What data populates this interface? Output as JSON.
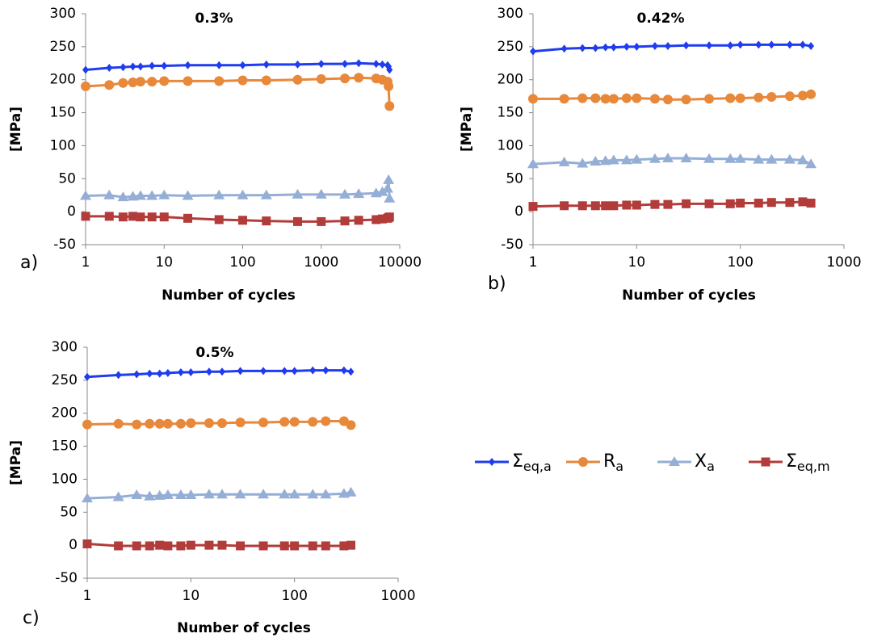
{
  "chart_data": [
    {
      "type": "line",
      "title": "0.3%",
      "panel_label": "a)",
      "x_label": "Number of cycles",
      "y_label": "[MPa]",
      "xscale": "log",
      "xlim": [
        1,
        10000
      ],
      "xticks": [
        1,
        10,
        100,
        1000,
        10000
      ],
      "ylim": [
        -50,
        300
      ],
      "yticks": [
        -50,
        0,
        50,
        100,
        150,
        200,
        250,
        300
      ],
      "grid": false,
      "x": [
        1,
        2,
        3,
        4,
        5,
        7,
        10,
        20,
        50,
        100,
        200,
        500,
        1000,
        2000,
        3000,
        5000,
        6000,
        7000,
        7200,
        7400
      ],
      "series": [
        {
          "color": "#1f3cf0",
          "marker": "diamond",
          "values": [
            215,
            218,
            219,
            220,
            220,
            221,
            221,
            222,
            222,
            222,
            223,
            223,
            224,
            224,
            225,
            224,
            223,
            222,
            220,
            215
          ]
        },
        {
          "color": "#e8883a",
          "marker": "circle",
          "values": [
            190,
            192,
            195,
            196,
            197,
            197,
            198,
            198,
            198,
            199,
            199,
            200,
            201,
            202,
            203,
            202,
            200,
            197,
            190,
            160
          ]
        },
        {
          "color": "#95aed6",
          "marker": "triangle",
          "values": [
            24,
            25,
            22,
            23,
            24,
            24,
            25,
            24,
            25,
            25,
            25,
            26,
            26,
            26,
            27,
            28,
            30,
            35,
            48,
            20
          ]
        },
        {
          "color": "#b23c3a",
          "marker": "square",
          "values": [
            -7,
            -7,
            -8,
            -7,
            -8,
            -8,
            -8,
            -10,
            -12,
            -13,
            -14,
            -15,
            -15,
            -14,
            -13,
            -12,
            -11,
            -10,
            -9,
            -8
          ]
        }
      ]
    },
    {
      "type": "line",
      "title": "0.42%",
      "panel_label": "b)",
      "x_label": "Number of cycles",
      "y_label": "[MPa]",
      "xscale": "log",
      "xlim": [
        1,
        1000
      ],
      "xticks": [
        1,
        10,
        100,
        1000
      ],
      "ylim": [
        -50,
        300
      ],
      "yticks": [
        -50,
        0,
        50,
        100,
        150,
        200,
        250,
        300
      ],
      "grid": false,
      "x": [
        1,
        2,
        3,
        4,
        5,
        6,
        8,
        10,
        15,
        20,
        30,
        50,
        80,
        100,
        150,
        200,
        300,
        400,
        480
      ],
      "series": [
        {
          "color": "#1f3cf0",
          "marker": "diamond",
          "values": [
            243,
            247,
            248,
            248,
            249,
            249,
            250,
            250,
            251,
            251,
            252,
            252,
            252,
            253,
            253,
            253,
            253,
            253,
            251
          ]
        },
        {
          "color": "#e8883a",
          "marker": "circle",
          "values": [
            171,
            171,
            172,
            172,
            171,
            171,
            172,
            172,
            171,
            170,
            170,
            171,
            172,
            172,
            173,
            174,
            175,
            176,
            178
          ]
        },
        {
          "color": "#95aed6",
          "marker": "triangle",
          "values": [
            72,
            75,
            73,
            76,
            77,
            78,
            78,
            79,
            80,
            81,
            81,
            80,
            80,
            80,
            79,
            79,
            79,
            78,
            72
          ]
        },
        {
          "color": "#b23c3a",
          "marker": "square",
          "values": [
            8,
            9,
            9,
            9,
            9,
            9,
            10,
            10,
            11,
            11,
            12,
            12,
            12,
            13,
            13,
            14,
            14,
            15,
            13
          ]
        }
      ]
    },
    {
      "type": "line",
      "title": "0.5%",
      "panel_label": "c)",
      "x_label": "Number of cycles",
      "y_label": "[MPa]",
      "xscale": "log",
      "xlim": [
        1,
        1000
      ],
      "xticks": [
        1,
        10,
        100,
        1000
      ],
      "ylim": [
        -50,
        300
      ],
      "yticks": [
        -50,
        0,
        50,
        100,
        150,
        200,
        250,
        300
      ],
      "grid": false,
      "legend": "right",
      "x": [
        1,
        2,
        3,
        4,
        5,
        6,
        8,
        10,
        15,
        20,
        30,
        50,
        80,
        100,
        150,
        200,
        300,
        350
      ],
      "series": [
        {
          "name": "Σeq,a",
          "color": "#1f3cf0",
          "marker": "diamond",
          "values": [
            255,
            258,
            259,
            260,
            260,
            261,
            262,
            262,
            263,
            263,
            264,
            264,
            264,
            264,
            265,
            265,
            265,
            263
          ]
        },
        {
          "name": "Ra",
          "color": "#e8883a",
          "marker": "circle",
          "values": [
            183,
            184,
            183,
            184,
            184,
            184,
            184,
            185,
            185,
            185,
            186,
            186,
            187,
            187,
            187,
            188,
            188,
            182
          ]
        },
        {
          "name": "Xa",
          "color": "#95aed6",
          "marker": "triangle",
          "values": [
            71,
            73,
            76,
            74,
            75,
            76,
            76,
            76,
            77,
            77,
            77,
            77,
            77,
            77,
            77,
            77,
            78,
            80
          ]
        },
        {
          "name": "Σeq,m",
          "color": "#b23c3a",
          "marker": "square",
          "values": [
            2,
            -1,
            -1,
            -1,
            0,
            -1,
            -1,
            0,
            0,
            0,
            -1,
            -1,
            -1,
            -1,
            -1,
            -1,
            -1,
            0
          ]
        }
      ]
    }
  ]
}
